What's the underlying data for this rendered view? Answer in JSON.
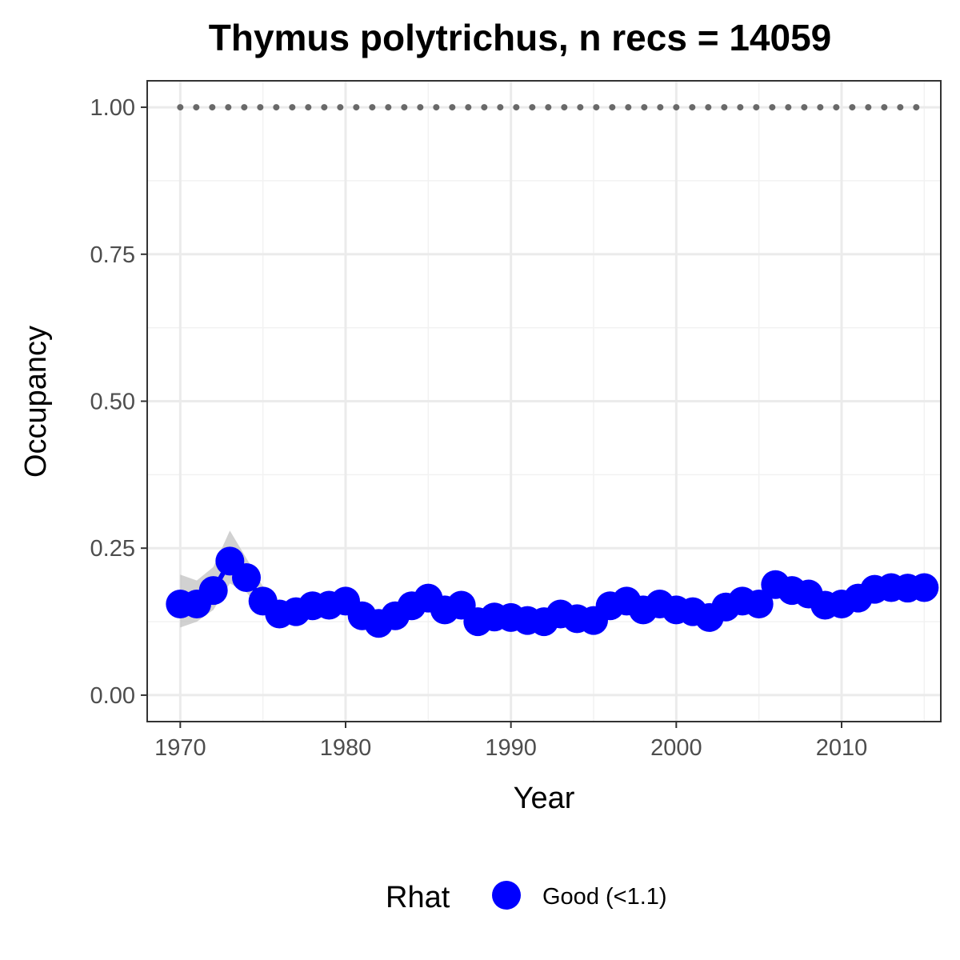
{
  "chart_data": {
    "type": "line",
    "title": "Thymus polytrichus, n recs = 14059",
    "xlabel": "Year",
    "ylabel": "Occupancy",
    "xlim": [
      1968,
      2016
    ],
    "ylim": [
      -0.045,
      1.045
    ],
    "x_ticks": [
      1970,
      1980,
      1990,
      2000,
      2010
    ],
    "x_tick_labels": [
      "1970",
      "1980",
      "1990",
      "2000",
      "2010"
    ],
    "y_ticks": [
      0,
      0.25,
      0.5,
      0.75,
      1.0
    ],
    "y_tick_labels": [
      "0.00",
      "0.25",
      "0.50",
      "0.75",
      "1.00"
    ],
    "grid": true,
    "legend_position": "bottom",
    "legend": {
      "title": "Rhat",
      "entries": [
        {
          "label": "Good (<1.1)",
          "color": "#0000ff"
        }
      ]
    },
    "reference_line": {
      "y": 1.0,
      "style": "dotted",
      "color": "#696969"
    },
    "x": [
      1970,
      1971,
      1972,
      1973,
      1974,
      1975,
      1976,
      1977,
      1978,
      1979,
      1980,
      1981,
      1982,
      1983,
      1984,
      1985,
      1986,
      1987,
      1988,
      1989,
      1990,
      1991,
      1992,
      1993,
      1994,
      1995,
      1996,
      1997,
      1998,
      1999,
      2000,
      2001,
      2002,
      2003,
      2004,
      2005,
      2006,
      2007,
      2008,
      2009,
      2010,
      2011,
      2012,
      2013,
      2014,
      2015
    ],
    "series": [
      {
        "name": "Good (<1.1)",
        "color": "#0000ff",
        "values": [
          0.155,
          0.155,
          0.178,
          0.228,
          0.2,
          0.16,
          0.138,
          0.142,
          0.152,
          0.153,
          0.16,
          0.135,
          0.122,
          0.135,
          0.152,
          0.165,
          0.145,
          0.153,
          0.125,
          0.133,
          0.132,
          0.127,
          0.125,
          0.138,
          0.13,
          0.127,
          0.152,
          0.16,
          0.145,
          0.155,
          0.145,
          0.142,
          0.132,
          0.15,
          0.16,
          0.155,
          0.188,
          0.178,
          0.172,
          0.153,
          0.155,
          0.165,
          0.18,
          0.183,
          0.182,
          0.183
        ],
        "lower": [
          0.115,
          0.125,
          0.145,
          0.19,
          0.175,
          0.14,
          0.123,
          0.127,
          0.137,
          0.138,
          0.143,
          0.12,
          0.11,
          0.122,
          0.137,
          0.15,
          0.13,
          0.138,
          0.113,
          0.12,
          0.12,
          0.115,
          0.113,
          0.125,
          0.117,
          0.115,
          0.137,
          0.145,
          0.13,
          0.14,
          0.13,
          0.128,
          0.12,
          0.135,
          0.145,
          0.14,
          0.17,
          0.163,
          0.157,
          0.14,
          0.14,
          0.15,
          0.165,
          0.168,
          0.167,
          0.168
        ],
        "upper": [
          0.205,
          0.195,
          0.218,
          0.28,
          0.233,
          0.185,
          0.155,
          0.16,
          0.17,
          0.17,
          0.178,
          0.153,
          0.137,
          0.15,
          0.17,
          0.183,
          0.163,
          0.17,
          0.14,
          0.148,
          0.147,
          0.142,
          0.14,
          0.153,
          0.145,
          0.142,
          0.17,
          0.178,
          0.162,
          0.173,
          0.162,
          0.158,
          0.148,
          0.167,
          0.178,
          0.173,
          0.208,
          0.196,
          0.19,
          0.17,
          0.172,
          0.183,
          0.198,
          0.2,
          0.2,
          0.2
        ]
      }
    ]
  }
}
